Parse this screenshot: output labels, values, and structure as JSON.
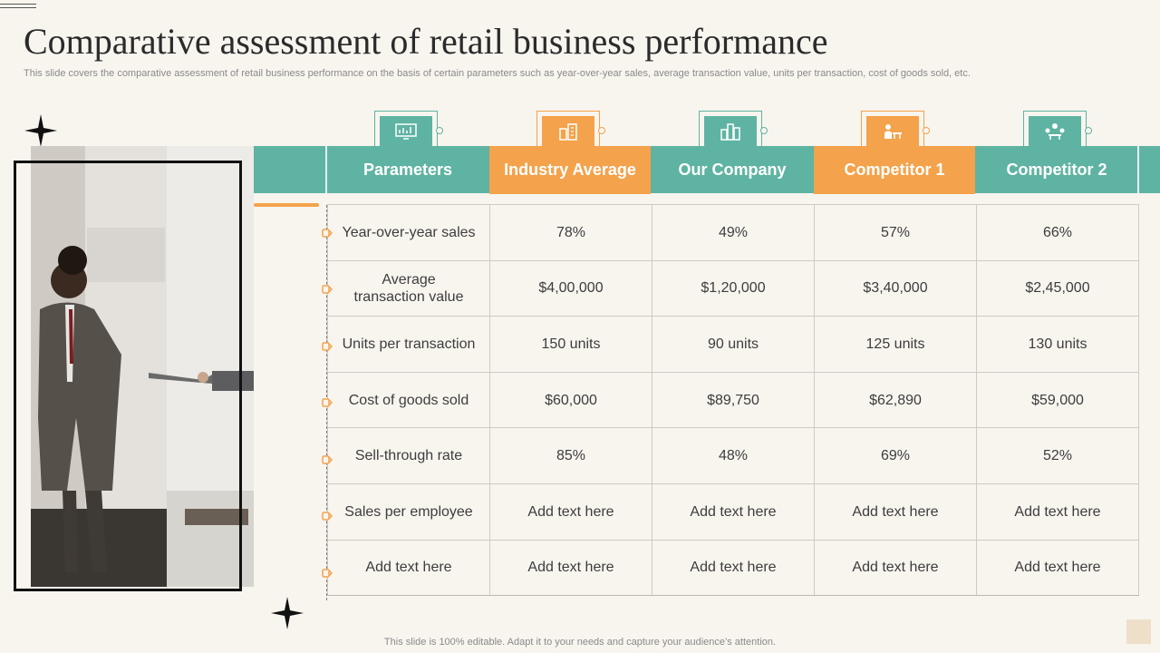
{
  "slide": {
    "title": "Comparative assessment of retail business performance",
    "subtitle": "This slide covers the comparative assessment of retail business performance on the basis of certain parameters such as year-over-year sales, average transaction value, units per transaction, cost of goods sold, etc.",
    "footer": "This slide is 100% editable. Adapt it to your needs and capture your audience’s attention."
  },
  "colors": {
    "teal": "#5fb3a2",
    "orange": "#f4a24b",
    "background": "#f8f5ef"
  },
  "table": {
    "headers": [
      {
        "label": "Parameters",
        "accent": "teal",
        "icon": "monitor-chart-icon"
      },
      {
        "label": "Industry Average",
        "accent": "orange",
        "icon": "buildings-icon"
      },
      {
        "label": "Our Company",
        "accent": "teal",
        "icon": "city-icon"
      },
      {
        "label": "Competitor 1",
        "accent": "orange",
        "icon": "person-desk-icon"
      },
      {
        "label": "Competitor 2",
        "accent": "teal",
        "icon": "team-meeting-icon"
      }
    ],
    "rows": [
      [
        "Year-over-year  sales",
        "78%",
        "49%",
        "57%",
        "66%"
      ],
      [
        "Average transaction value",
        "$4,00,000",
        "$1,20,000",
        "$3,40,000",
        "$2,45,000"
      ],
      [
        "Units per transaction",
        "150 units",
        "90 units",
        "125 units",
        "130 units"
      ],
      [
        "Cost of goods sold",
        "$60,000",
        "$89,750",
        "$62,890",
        "$59,000"
      ],
      [
        "Sell-through  rate",
        "85%",
        "48%",
        "69%",
        "52%"
      ],
      [
        "Sales per employee",
        "Add text here",
        "Add text here",
        "Add text here",
        "Add text here"
      ],
      [
        "Add text here",
        "Add text here",
        "Add text here",
        "Add text here",
        "Add text here"
      ]
    ]
  }
}
